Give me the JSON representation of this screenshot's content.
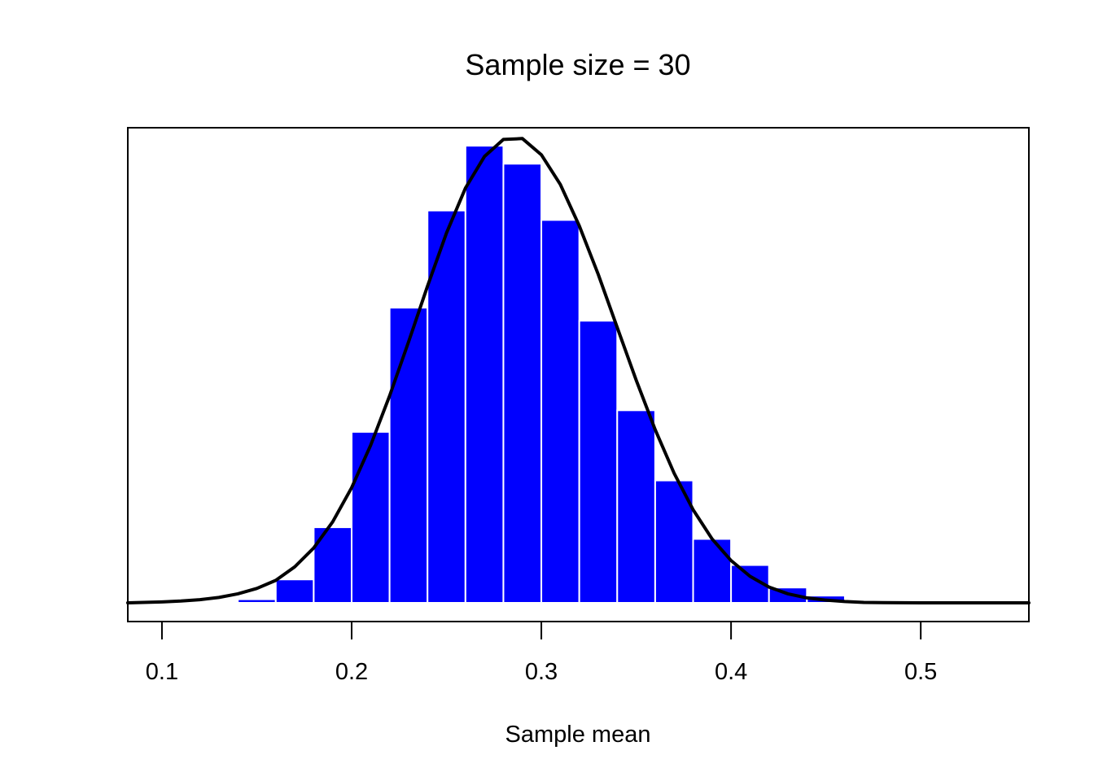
{
  "chart_data": {
    "type": "bar",
    "title": "Sample size = 30",
    "xlabel": "Sample mean",
    "ylabel": "",
    "xlim": [
      0.082,
      0.557
    ],
    "ylim": [
      0,
      1.09
    ],
    "x_ticks": [
      0.1,
      0.2,
      0.3,
      0.4,
      0.5
    ],
    "x_tick_labels": [
      "0.1",
      "0.2",
      "0.3",
      "0.4",
      "0.5"
    ],
    "y_axis_shown": false,
    "bar_color": "#0000ff",
    "bar_border_color": "#ffffff",
    "curve_color": "#000000",
    "histogram": {
      "bin_edges": [
        0.14,
        0.16,
        0.18,
        0.2,
        0.22,
        0.24,
        0.26,
        0.28,
        0.3,
        0.32,
        0.34,
        0.36,
        0.38,
        0.4,
        0.42,
        0.44,
        0.46
      ],
      "values": [
        0.008,
        0.052,
        0.168,
        0.38,
        0.656,
        0.872,
        1.016,
        0.976,
        0.851,
        0.627,
        0.428,
        0.272,
        0.142,
        0.084,
        0.034,
        0.016
      ]
    },
    "series": [
      {
        "type": "line",
        "x": [
          0.082,
          0.1,
          0.11,
          0.12,
          0.13,
          0.14,
          0.15,
          0.16,
          0.17,
          0.18,
          0.19,
          0.2,
          0.21,
          0.22,
          0.23,
          0.24,
          0.25,
          0.26,
          0.27,
          0.28,
          0.29,
          0.3,
          0.31,
          0.32,
          0.33,
          0.34,
          0.35,
          0.36,
          0.37,
          0.38,
          0.39,
          0.4,
          0.41,
          0.42,
          0.43,
          0.44,
          0.45,
          0.46,
          0.47,
          0.48,
          0.5,
          0.52,
          0.557
        ],
        "y": [
          0.0,
          0.002,
          0.004,
          0.007,
          0.012,
          0.02,
          0.032,
          0.05,
          0.08,
          0.122,
          0.18,
          0.256,
          0.35,
          0.46,
          0.58,
          0.704,
          0.822,
          0.922,
          0.992,
          1.03,
          1.032,
          0.996,
          0.93,
          0.838,
          0.73,
          0.612,
          0.495,
          0.385,
          0.288,
          0.207,
          0.142,
          0.094,
          0.059,
          0.035,
          0.02,
          0.011,
          0.006,
          0.003,
          0.001,
          0.0005,
          0.0,
          0.0,
          0.0
        ]
      }
    ]
  }
}
